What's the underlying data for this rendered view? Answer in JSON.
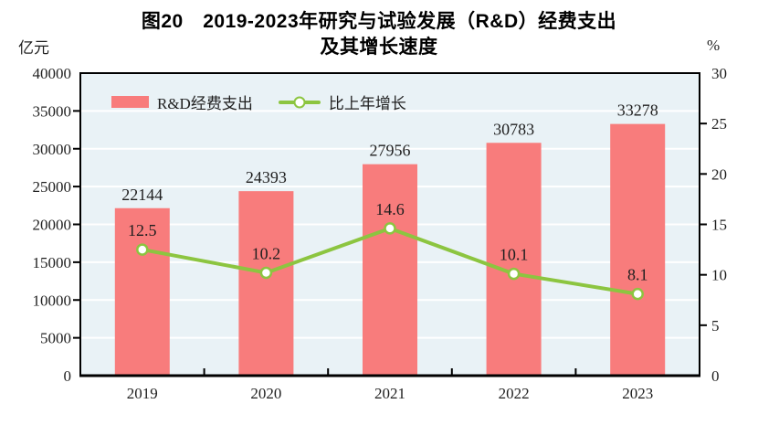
{
  "figure": {
    "title_line1": "图20　2019-2023年研究与试验发展（R&D）经费支出",
    "title_line2": "及其增长速度",
    "left_unit": "亿元",
    "right_unit": "%"
  },
  "legend": {
    "bar_label": "R&D经费支出",
    "line_label": "比上年增长"
  },
  "colors": {
    "bar": "#F87C7C",
    "line": "#8CC540",
    "marker_fill": "#FFFFFF",
    "plot_bg": "#E9F2F6",
    "grid": "#FFFFFF",
    "frame": "#000000",
    "text": "#1F1F1F"
  },
  "chart_data": {
    "type": "bar",
    "combo": "bar+line",
    "title": "图20 2019-2023年研究与试验发展（R&D）经费支出及其增长速度",
    "categories": [
      "2019",
      "2020",
      "2021",
      "2022",
      "2023"
    ],
    "series": [
      {
        "name": "R&D经费支出",
        "type": "bar",
        "axis": "left",
        "unit": "亿元",
        "values": [
          22144,
          24393,
          27956,
          30783,
          33278
        ]
      },
      {
        "name": "比上年增长",
        "type": "line",
        "axis": "right",
        "unit": "%",
        "values": [
          12.5,
          10.2,
          14.6,
          10.1,
          8.1
        ]
      }
    ],
    "left_axis": {
      "label": "亿元",
      "min": 0,
      "max": 40000,
      "step": 5000,
      "ticks": [
        "0",
        "5000",
        "10000",
        "15000",
        "20000",
        "25000",
        "30000",
        "35000",
        "40000"
      ]
    },
    "right_axis": {
      "label": "%",
      "min": 0,
      "max": 30,
      "step": 5,
      "ticks": [
        "0",
        "5",
        "10",
        "15",
        "20",
        "25",
        "30"
      ]
    },
    "grid": true,
    "legend_position": "top-left-inside"
  }
}
